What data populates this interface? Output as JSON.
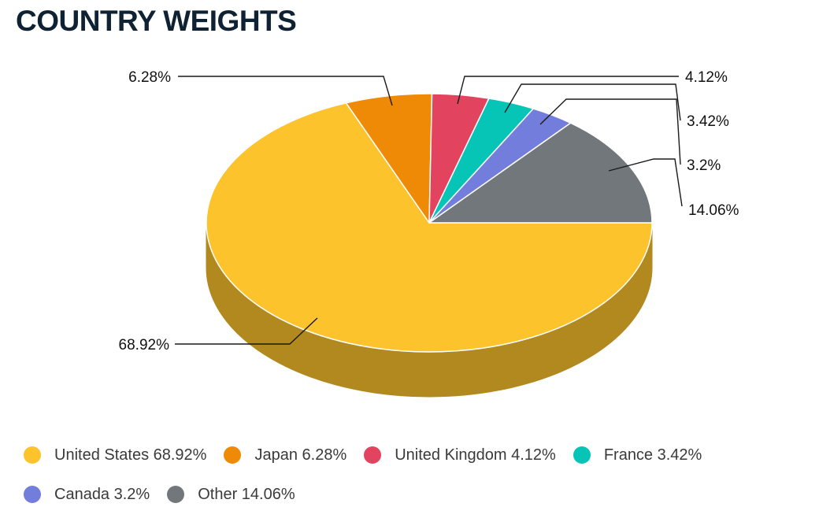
{
  "title": "COUNTRY WEIGHTS",
  "colors": {
    "title": "#0f2233",
    "side_shade": "#b2891f",
    "leader_line": "#1a1a1a"
  },
  "chart_data": {
    "type": "pie",
    "style": "3d",
    "unit": "%",
    "series": [
      {
        "name": "United States",
        "value": 68.92,
        "label": "68.92%",
        "legend": "United States 68.92%",
        "color": "#fdc32d",
        "side_color": "#b2891f"
      },
      {
        "name": "Japan",
        "value": 6.28,
        "label": "6.28%",
        "legend": "Japan 6.28%",
        "color": "#ef8a06",
        "side_color": "#a86104"
      },
      {
        "name": "United Kingdom",
        "value": 4.12,
        "label": "4.12%",
        "legend": "United Kingdom 4.12%",
        "color": "#e2435f",
        "side_color": "#9f2f43"
      },
      {
        "name": "France",
        "value": 3.42,
        "label": "3.42%",
        "legend": "France 3.42%",
        "color": "#06c5b7",
        "side_color": "#048a80"
      },
      {
        "name": "Canada",
        "value": 3.2,
        "label": "3.2%",
        "legend": "Canada 3.2%",
        "color": "#737ddb",
        "side_color": "#51589a"
      },
      {
        "name": "Other",
        "value": 14.06,
        "label": "14.06%",
        "legend": "Other 14.06%",
        "color": "#72777b",
        "side_color": "#505356"
      }
    ],
    "legend_position": "bottom"
  }
}
